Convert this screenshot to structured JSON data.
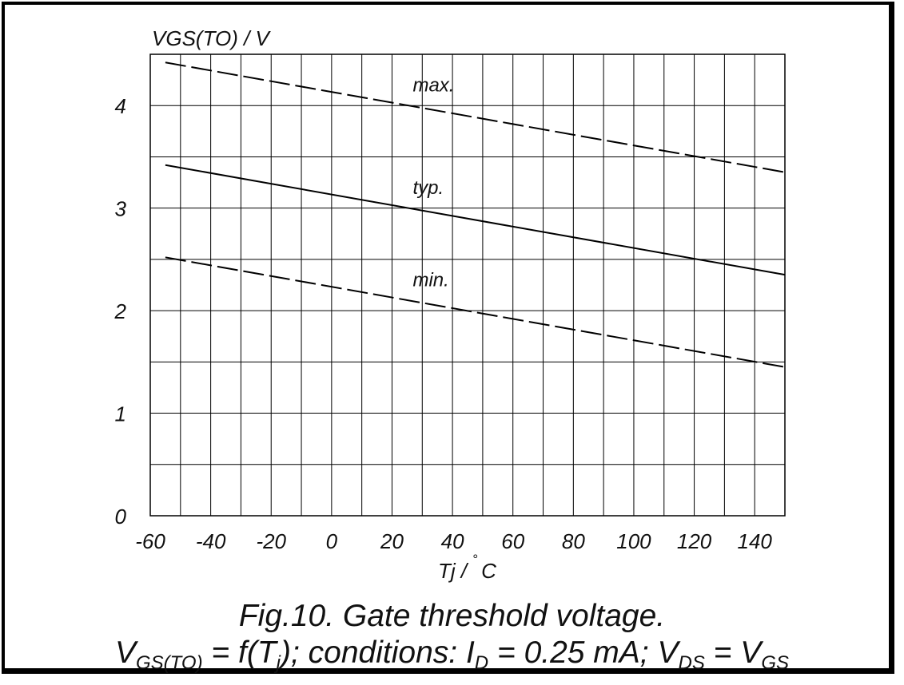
{
  "chart_data": {
    "type": "line",
    "ylabel": "VGS(TO) / V",
    "xlabel_main": "Tj / ",
    "xlabel_degree": "°",
    "xlabel_unit": "C",
    "x_ticks": [
      -60,
      -40,
      -20,
      0,
      20,
      40,
      60,
      80,
      100,
      120,
      140
    ],
    "y_ticks": [
      0,
      1,
      2,
      3,
      4
    ],
    "xlim": [
      -60,
      150
    ],
    "ylim": [
      0,
      4.5
    ],
    "grid": true,
    "series": [
      {
        "name": "max.",
        "style": "dashed",
        "x": [
          -55,
          150
        ],
        "y": [
          4.42,
          3.35
        ]
      },
      {
        "name": "typ.",
        "style": "solid",
        "x": [
          -55,
          150
        ],
        "y": [
          3.42,
          2.35
        ]
      },
      {
        "name": "min.",
        "style": "dashed",
        "x": [
          -55,
          150
        ],
        "y": [
          2.52,
          1.45
        ]
      }
    ]
  },
  "caption": {
    "line1": "Fig.10.  Gate threshold voltage.",
    "line2": {
      "v1": "V",
      "v1_sub": "GS(TO)",
      "t1": " = f(T",
      "t1_sub": "j",
      "t2": "); conditions: I",
      "t2_sub": "D",
      "t3": " = 0.25 mA; V",
      "t3_sub": "DS",
      "t4": " = V",
      "t4_sub": "GS"
    }
  }
}
